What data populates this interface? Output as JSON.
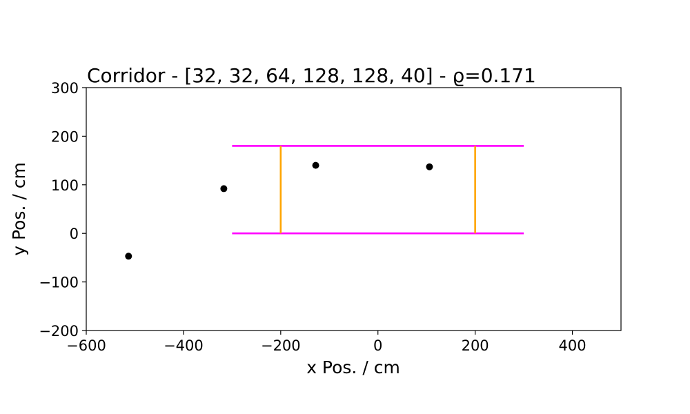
{
  "chart_data": {
    "type": "scatter",
    "title": "Corridor - [32, 32, 64, 128, 128, 40] - ϱ=0.171",
    "xlabel": "x Pos. / cm",
    "ylabel": "y Pos. / cm",
    "xlim": [
      -600,
      500
    ],
    "ylim": [
      -200,
      300
    ],
    "xticks": [
      -600,
      -400,
      -200,
      0,
      200,
      400
    ],
    "yticks": [
      -200,
      -100,
      0,
      100,
      200,
      300
    ],
    "xtick_labels": [
      "−600",
      "−400",
      "−200",
      "0",
      "200",
      "400"
    ],
    "ytick_labels": [
      "−200",
      "−100",
      "0",
      "100",
      "200",
      "300"
    ],
    "grid": false,
    "points": [
      {
        "x": -513,
        "y": -47
      },
      {
        "x": -317,
        "y": 92
      },
      {
        "x": -128,
        "y": 140
      },
      {
        "x": 106,
        "y": 137
      }
    ],
    "point_color": "#000000",
    "walls": [
      {
        "x": [
          -300,
          300
        ],
        "y": [
          180,
          180
        ]
      },
      {
        "x": [
          -300,
          300
        ],
        "y": [
          0,
          0
        ]
      }
    ],
    "wall_color": "#ff00ff",
    "measurement_lines": [
      {
        "x": [
          -200,
          -200
        ],
        "y": [
          0,
          180
        ]
      },
      {
        "x": [
          200,
          200
        ],
        "y": [
          0,
          180
        ]
      }
    ],
    "measurement_color": "#ffa500"
  }
}
